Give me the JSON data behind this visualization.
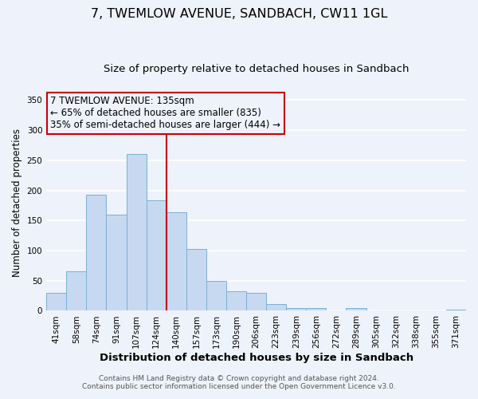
{
  "title": "7, TWEMLOW AVENUE, SANDBACH, CW11 1GL",
  "subtitle": "Size of property relative to detached houses in Sandbach",
  "xlabel": "Distribution of detached houses by size in Sandbach",
  "ylabel": "Number of detached properties",
  "bar_labels": [
    "41sqm",
    "58sqm",
    "74sqm",
    "91sqm",
    "107sqm",
    "124sqm",
    "140sqm",
    "157sqm",
    "173sqm",
    "190sqm",
    "206sqm",
    "223sqm",
    "239sqm",
    "256sqm",
    "272sqm",
    "289sqm",
    "305sqm",
    "322sqm",
    "338sqm",
    "355sqm",
    "371sqm"
  ],
  "bar_values": [
    30,
    65,
    193,
    160,
    260,
    183,
    163,
    103,
    50,
    32,
    30,
    11,
    4,
    5,
    0,
    5,
    0,
    0,
    0,
    0,
    2
  ],
  "bar_color": "#c6d9f0",
  "bar_edge_color": "#7bafd4",
  "vline_x_index": 6,
  "vline_color": "#cc0000",
  "annotation_line1": "7 TWEMLOW AVENUE: 135sqm",
  "annotation_line2": "← 65% of detached houses are smaller (835)",
  "annotation_line3": "35% of semi-detached houses are larger (444) →",
  "annotation_box_color": "#cc0000",
  "ylim": [
    0,
    360
  ],
  "yticks": [
    0,
    50,
    100,
    150,
    200,
    250,
    300,
    350
  ],
  "footer_line1": "Contains HM Land Registry data © Crown copyright and database right 2024.",
  "footer_line2": "Contains public sector information licensed under the Open Government Licence v3.0.",
  "background_color": "#eef2fa",
  "grid_color": "#ffffff",
  "title_fontsize": 11.5,
  "subtitle_fontsize": 9.5,
  "xlabel_fontsize": 9.5,
  "ylabel_fontsize": 8.5,
  "tick_fontsize": 7.5,
  "annotation_fontsize": 8.5,
  "footer_fontsize": 6.5
}
